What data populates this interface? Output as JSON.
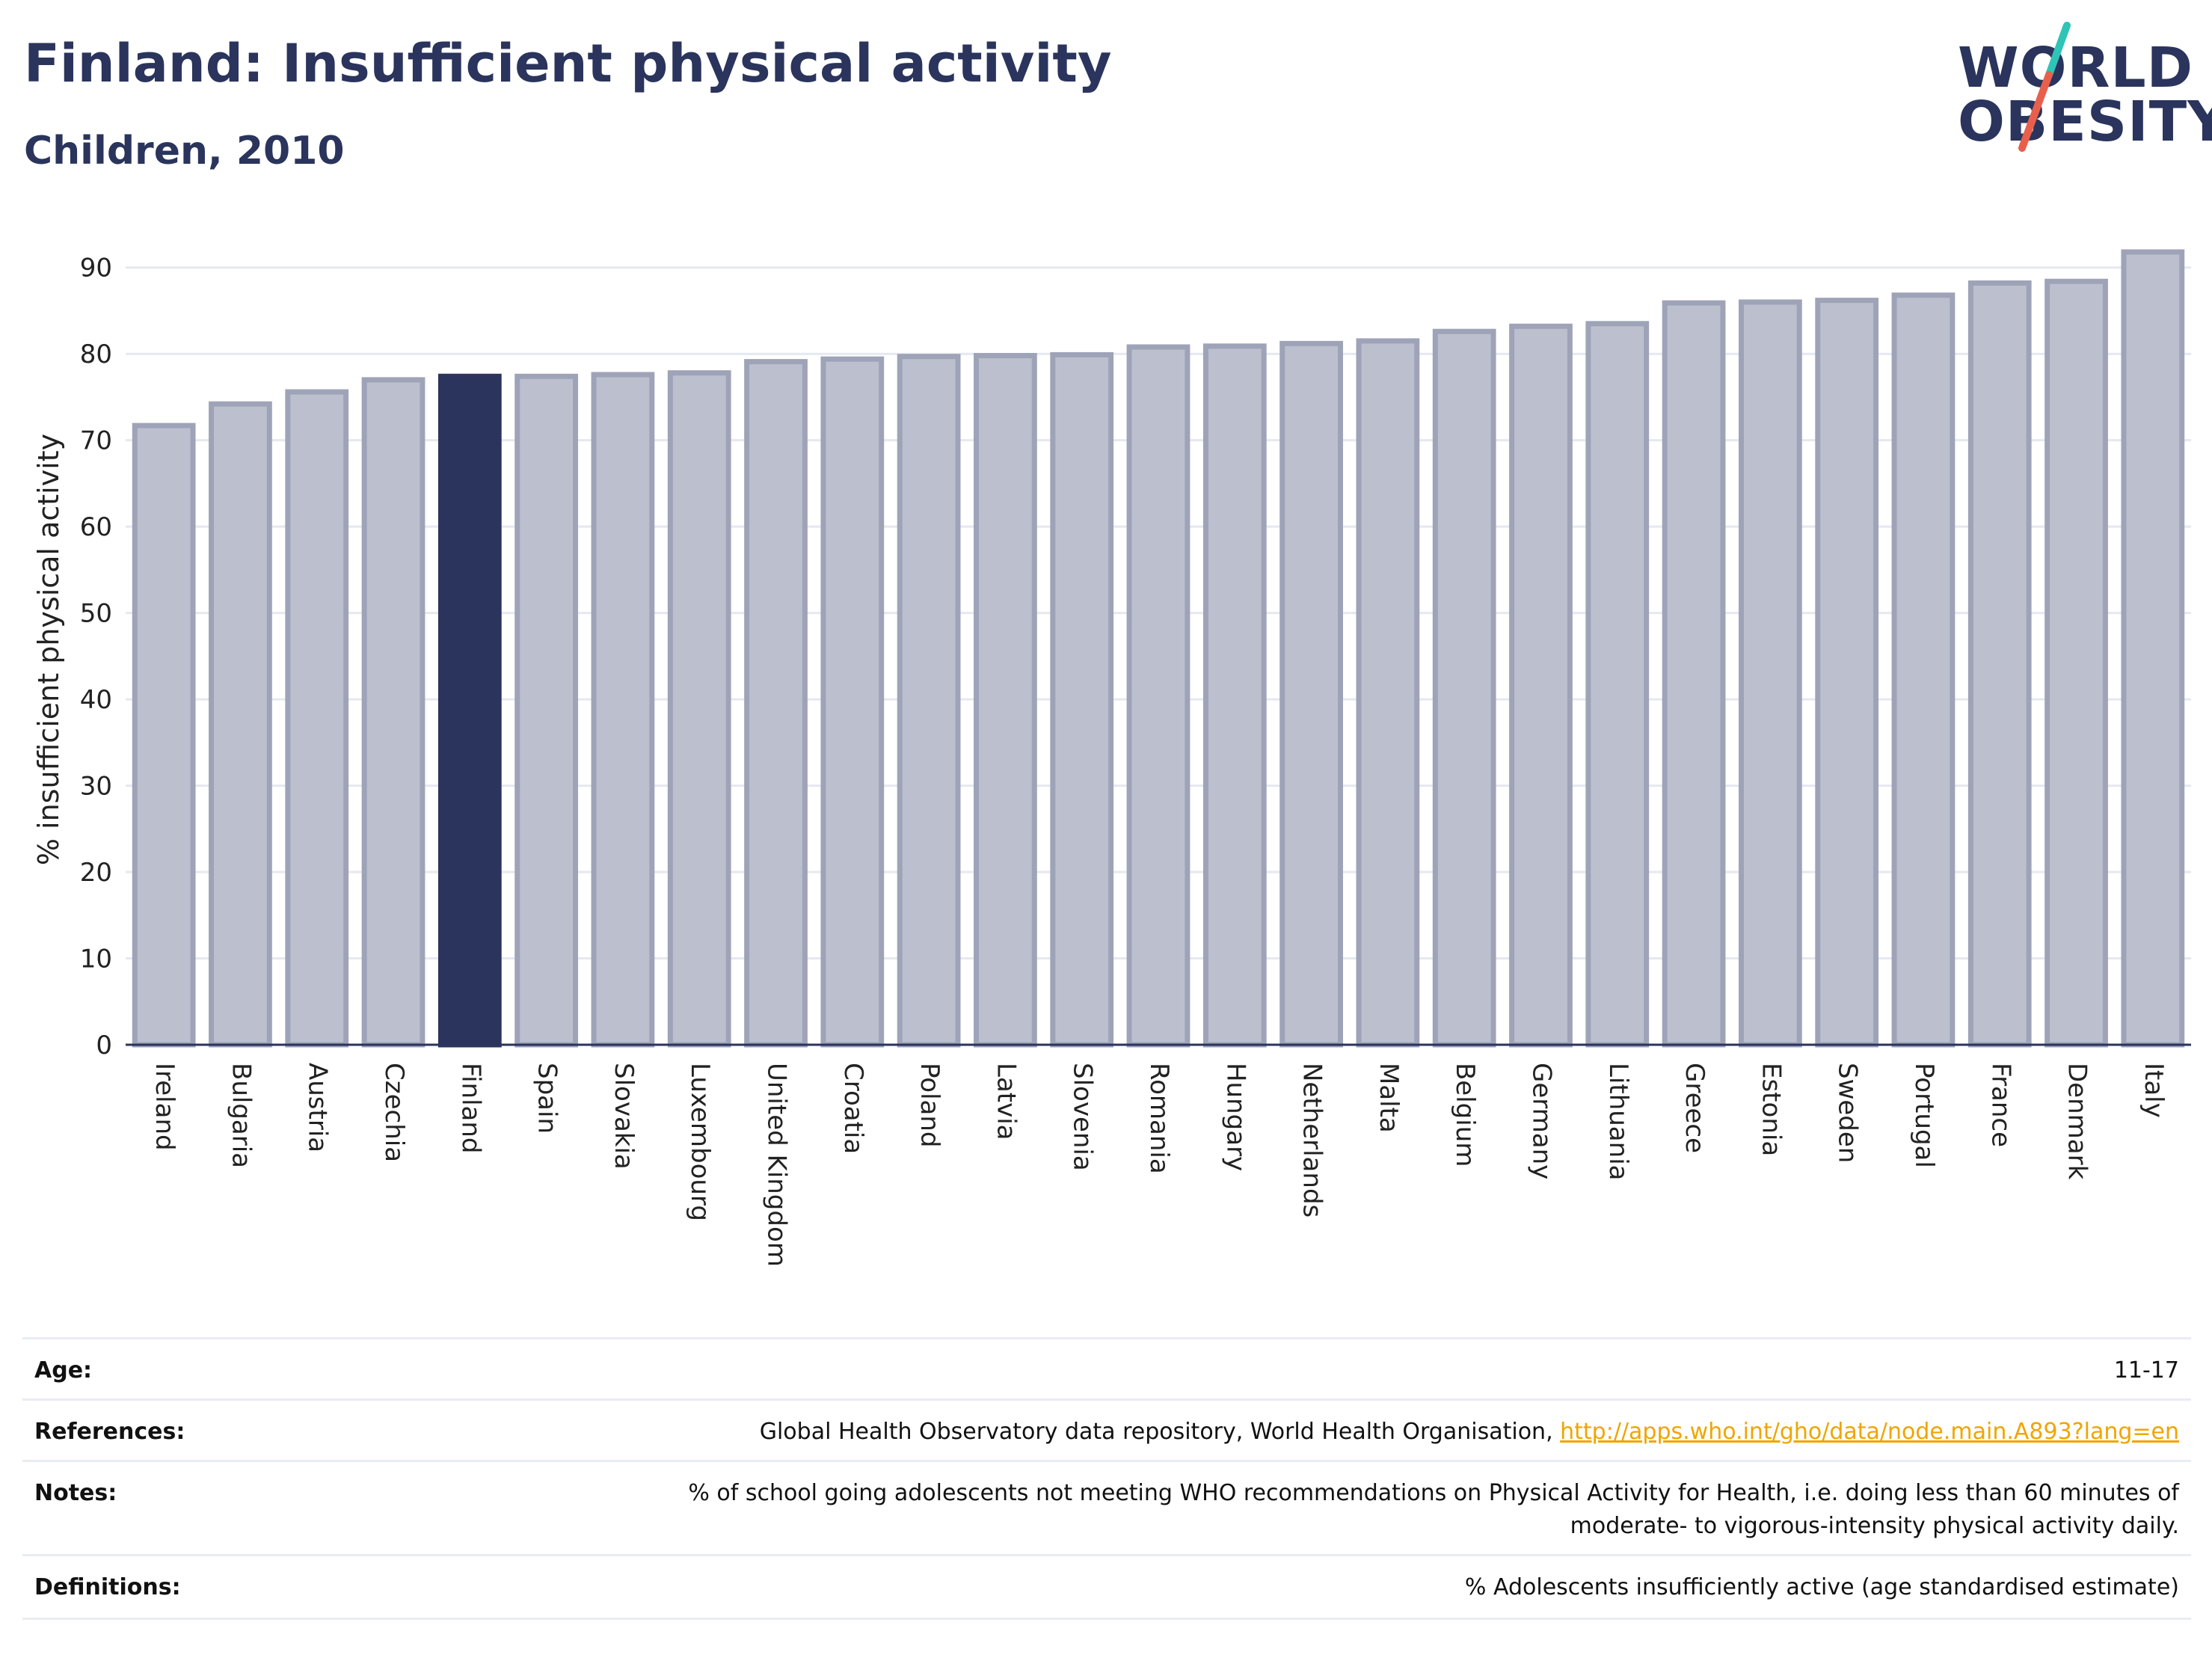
{
  "header": {
    "title": "Finland: Insufficient physical activity",
    "subtitle": "Children, 2010"
  },
  "logo": {
    "line1": "WORLD",
    "line2": "OBESITY",
    "slash_top_color": "#2ec4b6",
    "slash_bottom_color": "#e8604c"
  },
  "colors": {
    "highlight": "#2a345c",
    "bar_fill": "#bcc0ce",
    "bar_stroke": "#9ea3b8",
    "text": "#2a345c",
    "link": "#f0a500"
  },
  "chart_data": {
    "type": "bar",
    "title": "",
    "xlabel": "",
    "ylabel": "% insufficient physical activity",
    "ylim": [
      0,
      95
    ],
    "yticks": [
      0,
      10,
      20,
      30,
      40,
      50,
      60,
      70,
      80,
      90
    ],
    "grid": true,
    "highlight_category": "Finland",
    "categories": [
      "Ireland",
      "Bulgaria",
      "Austria",
      "Czechia",
      "Finland",
      "Spain",
      "Slovakia",
      "Luxembourg",
      "United Kingdom",
      "Croatia",
      "Poland",
      "Latvia",
      "Slovenia",
      "Romania",
      "Hungary",
      "Netherlands",
      "Malta",
      "Belgium",
      "Germany",
      "Lithuania",
      "Greece",
      "Estonia",
      "Sweden",
      "Portugal",
      "France",
      "Denmark",
      "Italy"
    ],
    "values": [
      71.7,
      74.2,
      75.6,
      77.0,
      77.4,
      77.4,
      77.6,
      77.8,
      79.1,
      79.4,
      79.7,
      79.8,
      79.9,
      80.8,
      80.9,
      81.2,
      81.5,
      82.6,
      83.2,
      83.5,
      85.9,
      86.0,
      86.2,
      86.8,
      88.2,
      88.4,
      91.8
    ]
  },
  "info": {
    "age_label": "Age:",
    "age_value": "11-17",
    "references_label": "References:",
    "references_text": "Global Health Observatory data repository, World Health Organisation, ",
    "references_link": "http://apps.who.int/gho/data/node.main.A893?lang=en",
    "notes_label": "Notes:",
    "notes_line1": "% of school going adolescents not meeting WHO recommendations on Physical Activity for Health, i.e. doing less than 60 minutes of",
    "notes_line2": "moderate- to vigorous-intensity physical activity daily.",
    "definitions_label": "Definitions:",
    "definitions_value": "% Adolescents insufficiently active (age standardised estimate)"
  }
}
